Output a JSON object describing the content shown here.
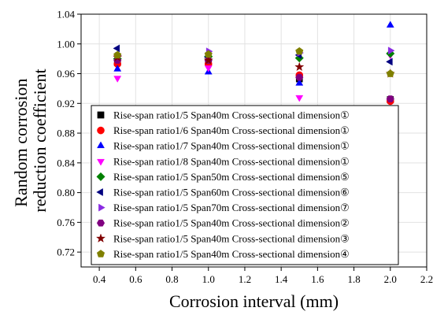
{
  "chart_data": {
    "type": "scatter",
    "title": "",
    "xlabel": "Corrosion interval (mm)",
    "ylabel": "Random corrosion reduction coefficient",
    "ylabel_lines": [
      "Random corrosion",
      "reduction coefficient"
    ],
    "xlim": [
      0.3,
      2.2
    ],
    "ylim": [
      0.7,
      1.04
    ],
    "xticks": [
      0.4,
      0.6,
      0.8,
      1.0,
      1.2,
      1.4,
      1.6,
      1.8,
      2.0,
      2.2
    ],
    "xtick_labels": [
      "0.4",
      "0.6",
      "0.8",
      "1.0",
      "1.2",
      "1.4",
      "1.6",
      "1.8",
      "2.0",
      "2.2"
    ],
    "yticks": [
      0.72,
      0.76,
      0.8,
      0.84,
      0.88,
      0.92,
      0.96,
      1.0,
      1.04
    ],
    "ytick_labels": [
      "0.72",
      "0.76",
      "0.80",
      "0.84",
      "0.88",
      "0.92",
      "0.96",
      "1.00",
      "1.04"
    ],
    "grid": true,
    "legend_position": "lower-right",
    "series": [
      {
        "name": "Rise-span ratio1/5 Span40m Cross-sectional dimension①",
        "marker": "square",
        "color": "#000000",
        "x": [
          0.5,
          1.0,
          1.5,
          2.0
        ],
        "y": [
          0.975,
          0.975,
          0.953,
          0.925
        ]
      },
      {
        "name": "Rise-span ratio1/6 Span40m Cross-sectional dimension①",
        "marker": "circle",
        "color": "#ff0000",
        "x": [
          0.5,
          1.0,
          1.5,
          2.0
        ],
        "y": [
          0.973,
          0.973,
          0.958,
          0.923
        ]
      },
      {
        "name": "Rise-span ratio1/7 Span40m Cross-sectional dimension①",
        "marker": "triangle-up",
        "color": "#0000ff",
        "x": [
          0.5,
          1.0,
          1.5,
          2.0
        ],
        "y": [
          0.966,
          0.962,
          0.947,
          1.025
        ]
      },
      {
        "name": "Rise-span ratio1/8 Span40m Cross-sectional dimension①",
        "marker": "triangle-down",
        "color": "#ff00ff",
        "x": [
          0.5,
          1.0,
          1.5,
          2.0
        ],
        "y": [
          0.954,
          0.968,
          0.928,
          0.985
        ]
      },
      {
        "name": "Rise-span ratio1/5 Span50m Cross-sectional dimension⑤",
        "marker": "diamond",
        "color": "#008000",
        "x": [
          0.5,
          1.0,
          1.5,
          2.0
        ],
        "y": [
          0.98,
          0.983,
          0.981,
          0.987
        ]
      },
      {
        "name": "Rise-span ratio1/5 Span60m Cross-sectional dimension⑥",
        "marker": "triangle-left",
        "color": "#000080",
        "x": [
          0.5,
          1.0,
          1.5,
          2.0
        ],
        "y": [
          0.994,
          0.982,
          0.985,
          0.976
        ]
      },
      {
        "name": "Rise-span ratio1/5 Span70m Cross-sectional dimension⑦",
        "marker": "triangle-right",
        "color": "#8a2be2",
        "x": [
          0.5,
          1.0,
          1.5,
          2.0
        ],
        "y": [
          0.984,
          0.99,
          0.988,
          0.991
        ]
      },
      {
        "name": "Rise-span ratio1/5 Span40m Cross-sectional dimension②",
        "marker": "hexagon",
        "color": "#800080",
        "x": [
          0.5,
          1.0,
          1.5,
          2.0
        ],
        "y": [
          0.978,
          0.978,
          0.955,
          0.926
        ]
      },
      {
        "name": "Rise-span ratio1/5 Span40m Cross-sectional dimension③",
        "marker": "star",
        "color": "#800000",
        "x": [
          0.5,
          1.0,
          1.5,
          2.0
        ],
        "y": [
          0.982,
          0.978,
          0.969,
          0.96
        ]
      },
      {
        "name": "Rise-span ratio1/5 Span40m Cross-sectional dimension④",
        "marker": "pentagon",
        "color": "#808000",
        "x": [
          0.5,
          1.0,
          1.5,
          2.0
        ],
        "y": [
          0.985,
          0.986,
          0.99,
          0.96
        ]
      }
    ]
  }
}
